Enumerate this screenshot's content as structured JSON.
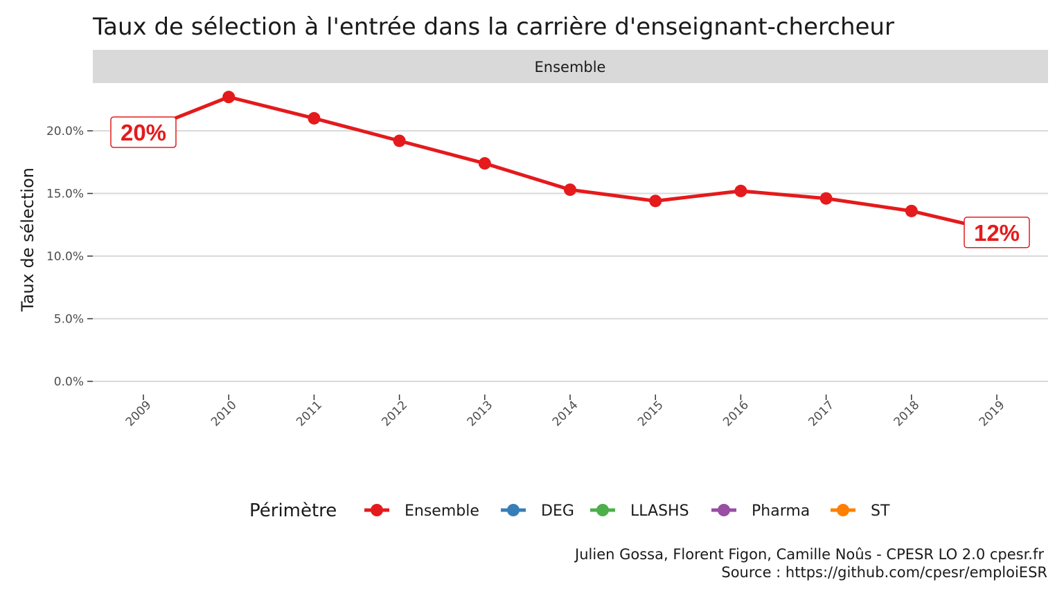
{
  "chart_data": {
    "type": "line",
    "title": "Taux de sélection à l'entrée dans la carrière d'enseignant-chercheur",
    "facet_label": "Ensemble",
    "xlabel": "",
    "ylabel": "Taux de sélection",
    "x": [
      2009,
      2010,
      2011,
      2012,
      2013,
      2014,
      2015,
      2016,
      2017,
      2018,
      2019
    ],
    "ylim": [
      0,
      0.23
    ],
    "y_ticks": [
      0,
      0.05,
      0.1,
      0.15,
      0.2
    ],
    "y_tick_labels": [
      "0.0%",
      "5.0%",
      "10.0%",
      "15.0%",
      "20.0%"
    ],
    "grid": true,
    "series": [
      {
        "name": "Ensemble",
        "color": "#E41A1C",
        "values": [
          0.2,
          0.227,
          0.21,
          0.192,
          0.174,
          0.153,
          0.144,
          0.152,
          0.146,
          0.136,
          0.12
        ],
        "start_label": "20%",
        "end_label": "12%"
      }
    ],
    "legend": {
      "title": "Périmètre",
      "position": "bottom",
      "entries": [
        {
          "name": "Ensemble",
          "color": "#E41A1C"
        },
        {
          "name": "DEG",
          "color": "#377EB8"
        },
        {
          "name": "LLASHS",
          "color": "#4DAF4A"
        },
        {
          "name": "Pharma",
          "color": "#984EA3"
        },
        {
          "name": "ST",
          "color": "#FF7F00"
        }
      ]
    },
    "caption": [
      "Julien Gossa, Florent Figon, Camille Noûs - CPESR LO 2.0 cpesr.fr",
      "Source : https://github.com/cpesr/emploiESR"
    ]
  }
}
